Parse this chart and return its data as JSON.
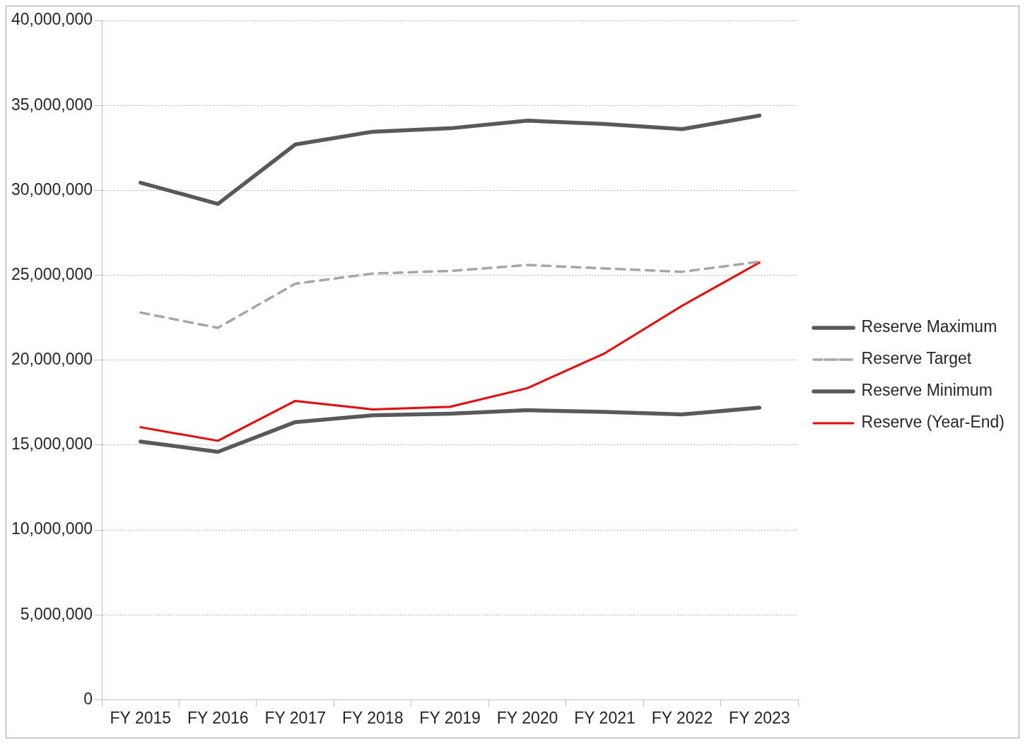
{
  "chart_data": {
    "type": "line",
    "categories": [
      "FY 2015",
      "FY 2016",
      "FY 2017",
      "FY 2018",
      "FY 2019",
      "FY 2020",
      "FY 2021",
      "FY 2022",
      "FY 2023"
    ],
    "series": [
      {
        "name": "Reserve Maximum",
        "color": "#595959",
        "line_style": "solid",
        "values": [
          30450000,
          29200000,
          32700000,
          33450000,
          33650000,
          34100000,
          33900000,
          33600000,
          34400000
        ]
      },
      {
        "name": "Reserve Target",
        "color": "#a6a6a6",
        "line_style": "dashed",
        "values": [
          22800000,
          21900000,
          24500000,
          25100000,
          25250000,
          25600000,
          25400000,
          25200000,
          25800000
        ]
      },
      {
        "name": "Reserve Minimum",
        "color": "#595959",
        "line_style": "solid",
        "values": [
          15200000,
          14600000,
          16350000,
          16750000,
          16850000,
          17050000,
          16950000,
          16800000,
          17200000
        ]
      },
      {
        "name": "Reserve (Year-End)",
        "color": "#ff0000",
        "line_style": "solid",
        "values": [
          16050000,
          15250000,
          17600000,
          17100000,
          17250000,
          18350000,
          20400000,
          23200000,
          25750000
        ]
      }
    ],
    "ylim": [
      0,
      40000000
    ],
    "yticks": [
      {
        "value": 0,
        "label": "0"
      },
      {
        "value": 5000000,
        "label": "5,000,000"
      },
      {
        "value": 10000000,
        "label": "10,000,000"
      },
      {
        "value": 15000000,
        "label": "15,000,000"
      },
      {
        "value": 20000000,
        "label": "20,000,000"
      },
      {
        "value": 25000000,
        "label": "25,000,000"
      },
      {
        "value": 30000000,
        "label": "30,000,000"
      },
      {
        "value": 35000000,
        "label": "35,000,000"
      },
      {
        "value": 40000000,
        "label": "40,000,000"
      }
    ],
    "grid": "y",
    "legend": "right",
    "marker": "none"
  }
}
